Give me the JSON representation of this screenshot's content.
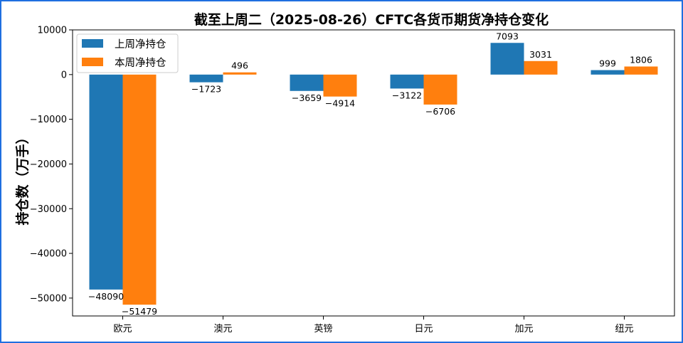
{
  "chart_data": {
    "type": "bar",
    "title": "截至上周二（2025-08-26）CFTC各货币期货净持仓变化",
    "xlabel": "",
    "ylabel": "持仓数（万手）",
    "categories": [
      "欧元",
      "澳元",
      "英镑",
      "日元",
      "加元",
      "纽元"
    ],
    "series": [
      {
        "name": "上周净持仓",
        "color": "#1f77b4",
        "values": [
          -48090,
          -1723,
          -3659,
          -3122,
          7093,
          999
        ]
      },
      {
        "name": "本周净持仓",
        "color": "#ff7f0e",
        "values": [
          -51479,
          496,
          -4914,
          -6706,
          3031,
          1806
        ]
      }
    ],
    "ylim": [
      -54000,
      10000
    ],
    "yticks": [
      10000,
      0,
      -10000,
      -20000,
      -30000,
      -40000,
      -50000
    ],
    "ytick_labels": [
      "10000",
      "0",
      "−10000",
      "−20000",
      "−30000",
      "−40000",
      "−50000"
    ],
    "grid": false,
    "legend_position": "top-left"
  }
}
